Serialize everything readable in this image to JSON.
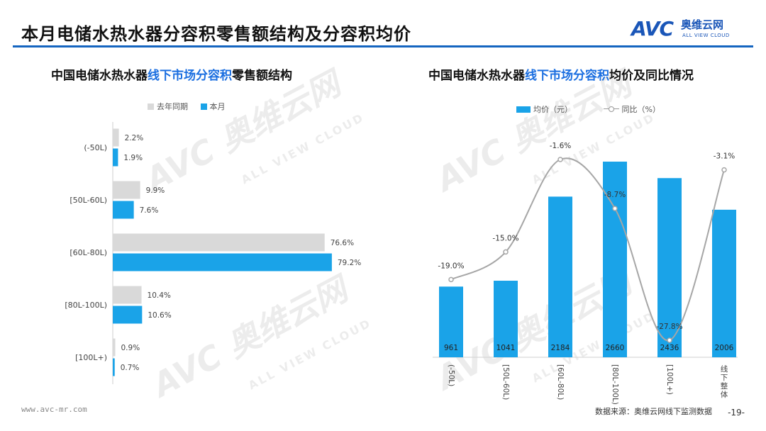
{
  "header": {
    "title": "本月电储水热水器分容积零售额结构及分容积均价",
    "logo_mark": "AVC",
    "logo_cn": "奥维云网",
    "logo_en": "ALL VIEW CLOUD"
  },
  "left_chart": {
    "title_pre": "中国电储水热水器",
    "title_hl": "线下市场分容积",
    "title_post": "零售额结构"
  },
  "right_chart": {
    "title_pre": "中国电储水热水器",
    "title_hl": "线下市场分容积",
    "title_post": "均价及同比情况"
  },
  "watermark": {
    "big": "AVC 奥维云网",
    "small": "ALL VIEW CLOUD"
  },
  "footer": {
    "site": "www.avc-mr.com",
    "source": "数据来源：奥维云网线下监测数据",
    "page": "-19-"
  },
  "colors": {
    "accent": "#1aa3e8",
    "gray_bar": "#d9d9d9",
    "line": "#a6a6a6",
    "rule": "#1565c0",
    "title_highlight": "#1a6ee0"
  },
  "chart_data": [
    {
      "type": "bar",
      "orientation": "horizontal",
      "categories": [
        "(-50L)",
        "[50L-60L)",
        "[60L-80L)",
        "[80L-100L)",
        "[100L+)"
      ],
      "series": [
        {
          "name": "去年同期",
          "values": [
            2.2,
            9.9,
            76.6,
            10.4,
            0.9
          ],
          "labels": [
            "2.2%",
            "9.9%",
            "76.6%",
            "10.4%",
            "0.9%"
          ],
          "color": "#d9d9d9"
        },
        {
          "name": "本月",
          "values": [
            1.9,
            7.6,
            79.2,
            10.6,
            0.7
          ],
          "labels": [
            "1.9%",
            "7.6%",
            "79.2%",
            "10.6%",
            "0.7%"
          ],
          "color": "#1aa3e8"
        }
      ],
      "xlim": [
        0,
        100
      ]
    },
    {
      "type": "bar+line",
      "categories": [
        "(-50L)",
        "[50L-60L)",
        "[60L-80L)",
        "[80L-100L)",
        "[100L+)",
        "线下整体"
      ],
      "series": [
        {
          "name": "均价（元）",
          "type": "bar",
          "values": [
            961,
            1041,
            2184,
            2660,
            2436,
            2006
          ],
          "labels": [
            "961",
            "1041",
            "2184",
            "2660",
            "2436",
            "2006"
          ],
          "color": "#1aa3e8"
        },
        {
          "name": "同比（%）",
          "type": "line",
          "values": [
            -19.0,
            -15.0,
            -1.6,
            -8.7,
            -27.8,
            -3.1
          ],
          "labels": [
            "-19.0%",
            "-15.0%",
            "-1.6%",
            "-8.7%",
            "-27.8%",
            "-3.1%"
          ],
          "color": "#a6a6a6"
        }
      ],
      "ylim_bar": [
        0,
        3000
      ],
      "ylim_line": [
        -30,
        0
      ]
    }
  ]
}
